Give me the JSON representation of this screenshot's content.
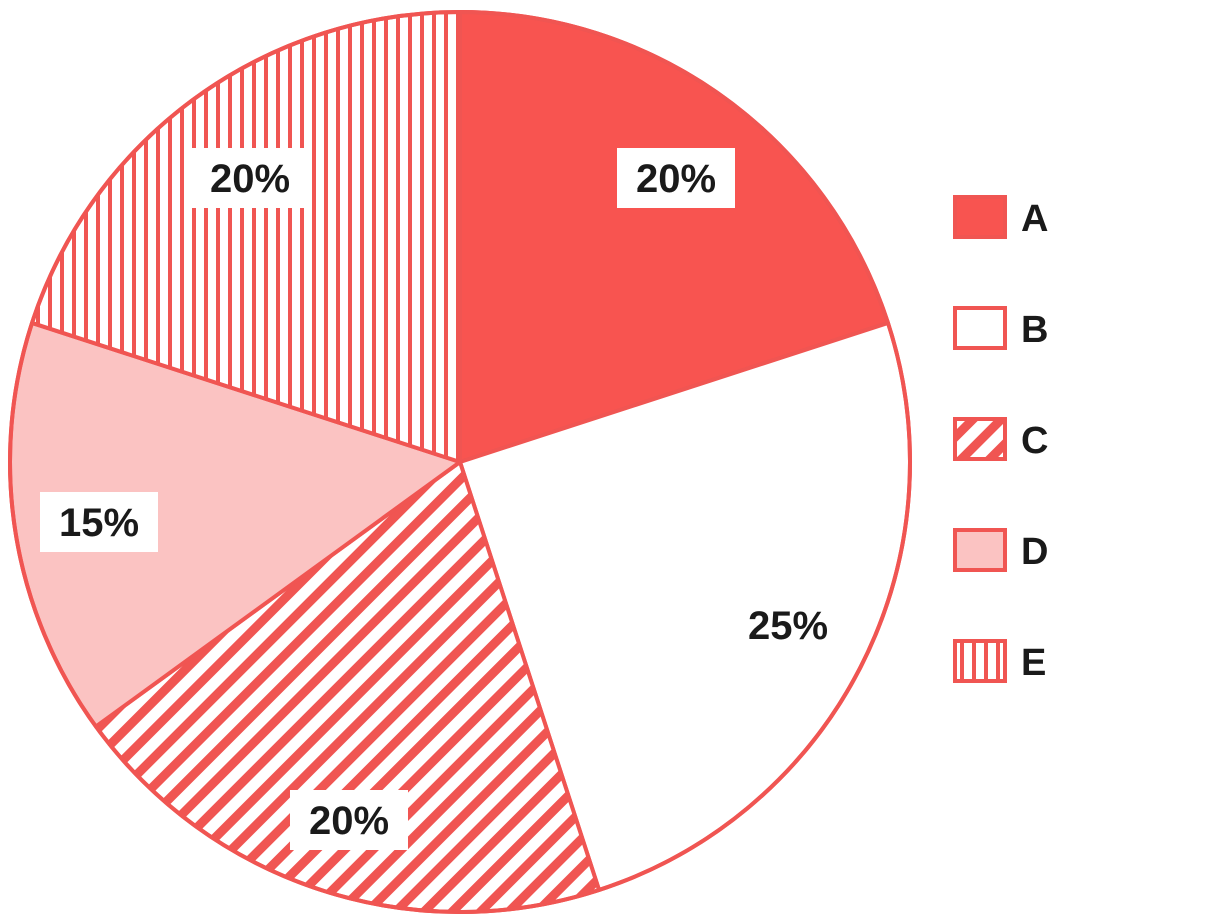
{
  "chart_data": {
    "type": "pie",
    "categories": [
      "A",
      "B",
      "C",
      "D",
      "E"
    ],
    "values": [
      20,
      25,
      20,
      15,
      20
    ],
    "data_labels": [
      "20%",
      "25%",
      "20%",
      "15%",
      "20%"
    ],
    "legend": {
      "placement": "right",
      "entries": [
        "A",
        "B",
        "C",
        "D",
        "E"
      ]
    },
    "start_angle": "12 o'clock",
    "direction": "clockwise",
    "colors": {
      "accent": "#f85450",
      "stroke": "#f05552",
      "light_fill": "#fbc3c2",
      "white": "#ffffff",
      "label_bg": "#ffffff"
    },
    "patterns": [
      "solid",
      "empty",
      "diagonal-hatch",
      "light-solid",
      "vertical-stripes"
    ]
  }
}
